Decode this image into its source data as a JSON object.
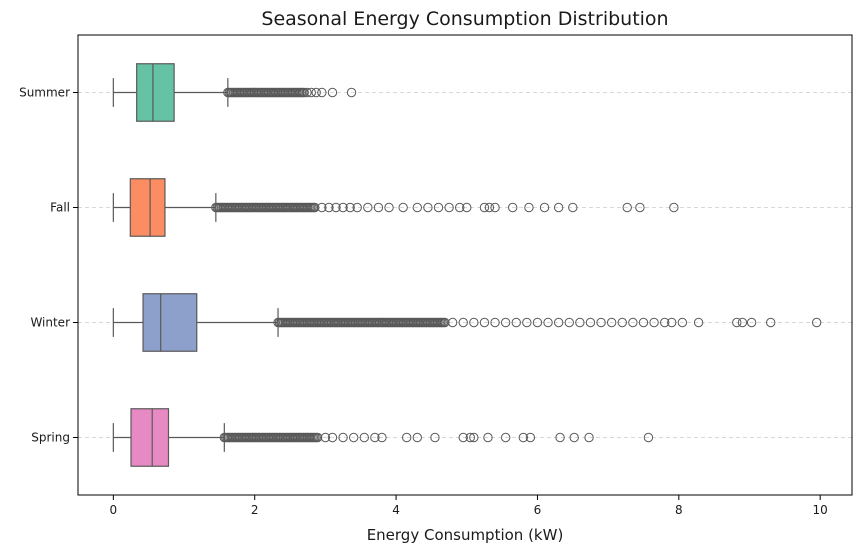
{
  "chart_data": {
    "type": "boxplot",
    "orientation": "horizontal",
    "title": "Seasonal Energy Consumption Distribution",
    "xlabel": "Energy Consumption (kW)",
    "ylabel": "",
    "xlim": [
      -0.5,
      10.45
    ],
    "xticks": [
      0,
      2,
      4,
      6,
      8,
      10
    ],
    "grid": {
      "y": true,
      "style": "dashed"
    },
    "categories": [
      "Summer",
      "Fall",
      "Winter",
      "Spring"
    ],
    "colors": [
      "#66c2a5",
      "#fc8d62",
      "#8da0cb",
      "#e78ac3"
    ],
    "series": [
      {
        "category": "Summer",
        "whisker_low": 0.0,
        "q1": 0.33,
        "median": 0.56,
        "q3": 0.86,
        "whisker_high": 1.62,
        "outliers_dense_range": [
          1.62,
          2.7
        ],
        "outliers": [
          2.74,
          2.8,
          2.87,
          2.95,
          3.1,
          3.37
        ]
      },
      {
        "category": "Fall",
        "whisker_low": 0.0,
        "q1": 0.24,
        "median": 0.52,
        "q3": 0.73,
        "whisker_high": 1.45,
        "outliers_dense_range": [
          1.45,
          2.85
        ],
        "outliers": [
          2.95,
          3.05,
          3.15,
          3.25,
          3.35,
          3.45,
          3.6,
          3.75,
          3.9,
          4.1,
          4.3,
          4.45,
          4.6,
          4.75,
          4.9,
          5.0,
          5.25,
          5.32,
          5.4,
          5.65,
          5.88,
          6.1,
          6.3,
          6.5,
          7.27,
          7.45,
          7.93
        ]
      },
      {
        "category": "Winter",
        "whisker_low": 0.0,
        "q1": 0.42,
        "median": 0.67,
        "q3": 1.18,
        "whisker_high": 2.33,
        "outliers_dense_range": [
          2.33,
          4.7
        ],
        "outliers": [
          4.8,
          4.95,
          5.1,
          5.25,
          5.4,
          5.55,
          5.7,
          5.85,
          6.0,
          6.15,
          6.3,
          6.45,
          6.6,
          6.75,
          6.9,
          7.05,
          7.2,
          7.35,
          7.5,
          7.65,
          7.8,
          7.9,
          8.05,
          8.28,
          8.82,
          8.9,
          9.03,
          9.3,
          9.95
        ]
      },
      {
        "category": "Spring",
        "whisker_low": 0.0,
        "q1": 0.25,
        "median": 0.55,
        "q3": 0.78,
        "whisker_high": 1.57,
        "outliers_dense_range": [
          1.57,
          2.9
        ],
        "outliers": [
          3.0,
          3.1,
          3.25,
          3.4,
          3.55,
          3.7,
          3.8,
          4.15,
          4.3,
          4.55,
          4.95,
          5.05,
          5.1,
          5.3,
          5.55,
          5.8,
          5.9,
          6.32,
          6.52,
          6.73,
          7.57
        ]
      }
    ]
  }
}
